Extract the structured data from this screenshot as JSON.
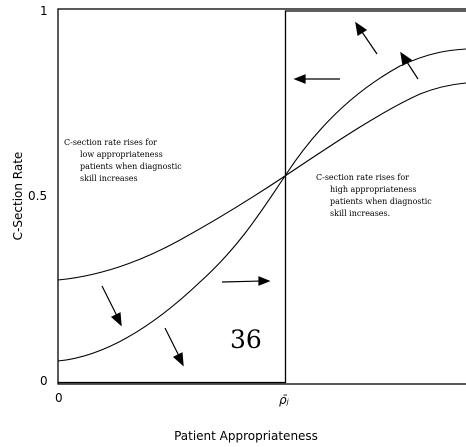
{
  "figure": {
    "y_axis_title": "C-Section Rate",
    "x_axis_title": "Patient Appropriateness",
    "y_ticks": {
      "top": "1",
      "mid": "0.5",
      "bottom": "0"
    },
    "x_ticks": {
      "origin": "0",
      "threshold": "ρ̄ⱼ"
    },
    "left_note": [
      "C-section rate rises for",
      "low appropriateness",
      "patients when diagnostic",
      "skill increases"
    ],
    "right_note": [
      "C-section rate rises for",
      "high appropriateness",
      "patients when diagnostic",
      "skill increases."
    ],
    "page_number": "36"
  }
}
